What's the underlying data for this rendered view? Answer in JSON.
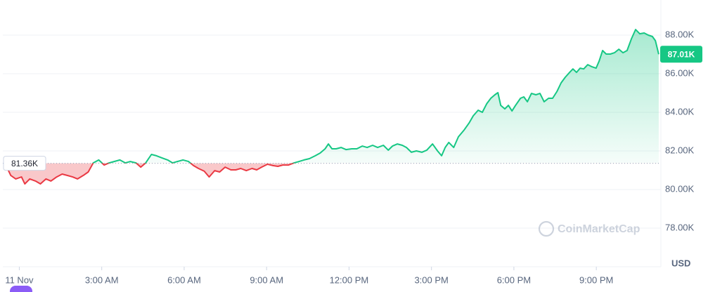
{
  "chart_data": {
    "type": "line",
    "x": [
      -0.49,
      -0.31,
      -0.13,
      0.08,
      0.2,
      0.38,
      0.59,
      0.77,
      0.97,
      1.15,
      1.36,
      1.56,
      1.74,
      1.94,
      2.12,
      2.33,
      2.51,
      2.69,
      2.89,
      3.09,
      3.27,
      3.45,
      3.66,
      3.86,
      4.04,
      4.25,
      4.42,
      4.6,
      4.81,
      4.99,
      5.19,
      5.4,
      5.58,
      5.75,
      5.96,
      6.16,
      6.34,
      6.52,
      6.73,
      6.91,
      7.11,
      7.29,
      7.49,
      7.7,
      7.88,
      8.06,
      8.26,
      8.47,
      8.64,
      8.82,
      9.03,
      9.23,
      9.41,
      9.59,
      9.8,
      10.0,
      10.18,
      10.36,
      10.56,
      10.77,
      10.95,
      11.13,
      11.25,
      11.38,
      11.53,
      11.71,
      11.89,
      12.1,
      12.28,
      12.48,
      12.66,
      12.86,
      13.04,
      13.25,
      13.43,
      13.58,
      13.76,
      13.94,
      14.09,
      14.27,
      14.45,
      14.65,
      14.83,
      15.04,
      15.22,
      15.37,
      15.5,
      15.63,
      15.81,
      15.98,
      16.19,
      16.37,
      16.52,
      16.7,
      16.85,
      17.01,
      17.16,
      17.31,
      17.42,
      17.52,
      17.67,
      17.8,
      17.93,
      18.06,
      18.24,
      18.36,
      18.49,
      18.64,
      18.8,
      18.95,
      19.1,
      19.26,
      19.41,
      19.57,
      19.72,
      19.87,
      20.03,
      20.15,
      20.28,
      20.41,
      20.54,
      20.69,
      20.84,
      20.99,
      21.1,
      21.23,
      21.36,
      21.51,
      21.66,
      21.82,
      21.97,
      22.12,
      22.28,
      22.43,
      22.58,
      22.74,
      22.89,
      23.04,
      23.15,
      23.27
    ],
    "series": [
      {
        "color": "#16c784",
        "color_below": "#ea3943",
        "values": [
          81.27,
          80.73,
          80.55,
          80.65,
          80.29,
          80.55,
          80.44,
          80.29,
          80.55,
          80.44,
          80.65,
          80.8,
          80.73,
          80.65,
          80.55,
          80.73,
          80.91,
          81.38,
          81.53,
          81.27,
          81.38,
          81.45,
          81.53,
          81.38,
          81.45,
          81.38,
          81.16,
          81.38,
          81.82,
          81.75,
          81.64,
          81.53,
          81.38,
          81.45,
          81.53,
          81.45,
          81.24,
          81.09,
          80.95,
          80.65,
          80.98,
          80.91,
          81.16,
          81.02,
          81.02,
          81.09,
          80.98,
          81.09,
          81.02,
          81.16,
          81.31,
          81.24,
          81.2,
          81.27,
          81.27,
          81.38,
          81.45,
          81.53,
          81.6,
          81.75,
          81.89,
          82.11,
          82.36,
          82.11,
          82.11,
          82.18,
          82.07,
          82.11,
          82.11,
          82.25,
          82.18,
          82.29,
          82.18,
          82.29,
          82.04,
          82.25,
          82.36,
          82.29,
          82.18,
          81.93,
          82.0,
          81.93,
          82.04,
          82.36,
          82.0,
          81.75,
          82.18,
          82.44,
          82.18,
          82.73,
          83.09,
          83.45,
          83.82,
          84.11,
          84.0,
          84.44,
          84.73,
          84.91,
          85.02,
          84.36,
          84.18,
          84.36,
          84.07,
          84.36,
          84.73,
          84.8,
          84.55,
          84.98,
          84.91,
          84.98,
          84.55,
          84.73,
          84.73,
          85.09,
          85.53,
          85.82,
          86.07,
          86.25,
          86.07,
          86.29,
          86.25,
          86.47,
          86.36,
          86.29,
          86.65,
          87.2,
          87.02,
          87.02,
          87.09,
          87.27,
          87.09,
          87.2,
          87.82,
          88.29,
          88.07,
          88.11,
          88.0,
          87.93,
          87.71,
          87.01
        ]
      }
    ],
    "xlim": [
      -0.6,
      23.35
    ],
    "xticks": [
      {
        "value": 0,
        "label": "11 Nov"
      },
      {
        "value": 3,
        "label": "3:00 AM"
      },
      {
        "value": 6,
        "label": "6:00 AM"
      },
      {
        "value": 9,
        "label": "9:00 AM"
      },
      {
        "value": 12,
        "label": "12:00 PM"
      },
      {
        "value": 15,
        "label": "3:00 PM"
      },
      {
        "value": 18,
        "label": "6:00 PM"
      },
      {
        "value": 21,
        "label": "9:00 PM"
      }
    ],
    "ylim": [
      76.0,
      89.82
    ],
    "yticks": [
      {
        "value": 78,
        "label": "78.00K"
      },
      {
        "value": 80,
        "label": "80.00K"
      },
      {
        "value": 82,
        "label": "82.00K"
      },
      {
        "value": 84,
        "label": "84.00K"
      },
      {
        "value": 86,
        "label": "86.00K"
      },
      {
        "value": 88,
        "label": "88.00K"
      }
    ],
    "grid": true,
    "reference": {
      "value": 81.36,
      "label": "81.36K"
    },
    "current_price": {
      "value": 87.01,
      "label": "87.01K"
    },
    "y_unit": "USD",
    "watermark": "CoinMarketCap"
  }
}
